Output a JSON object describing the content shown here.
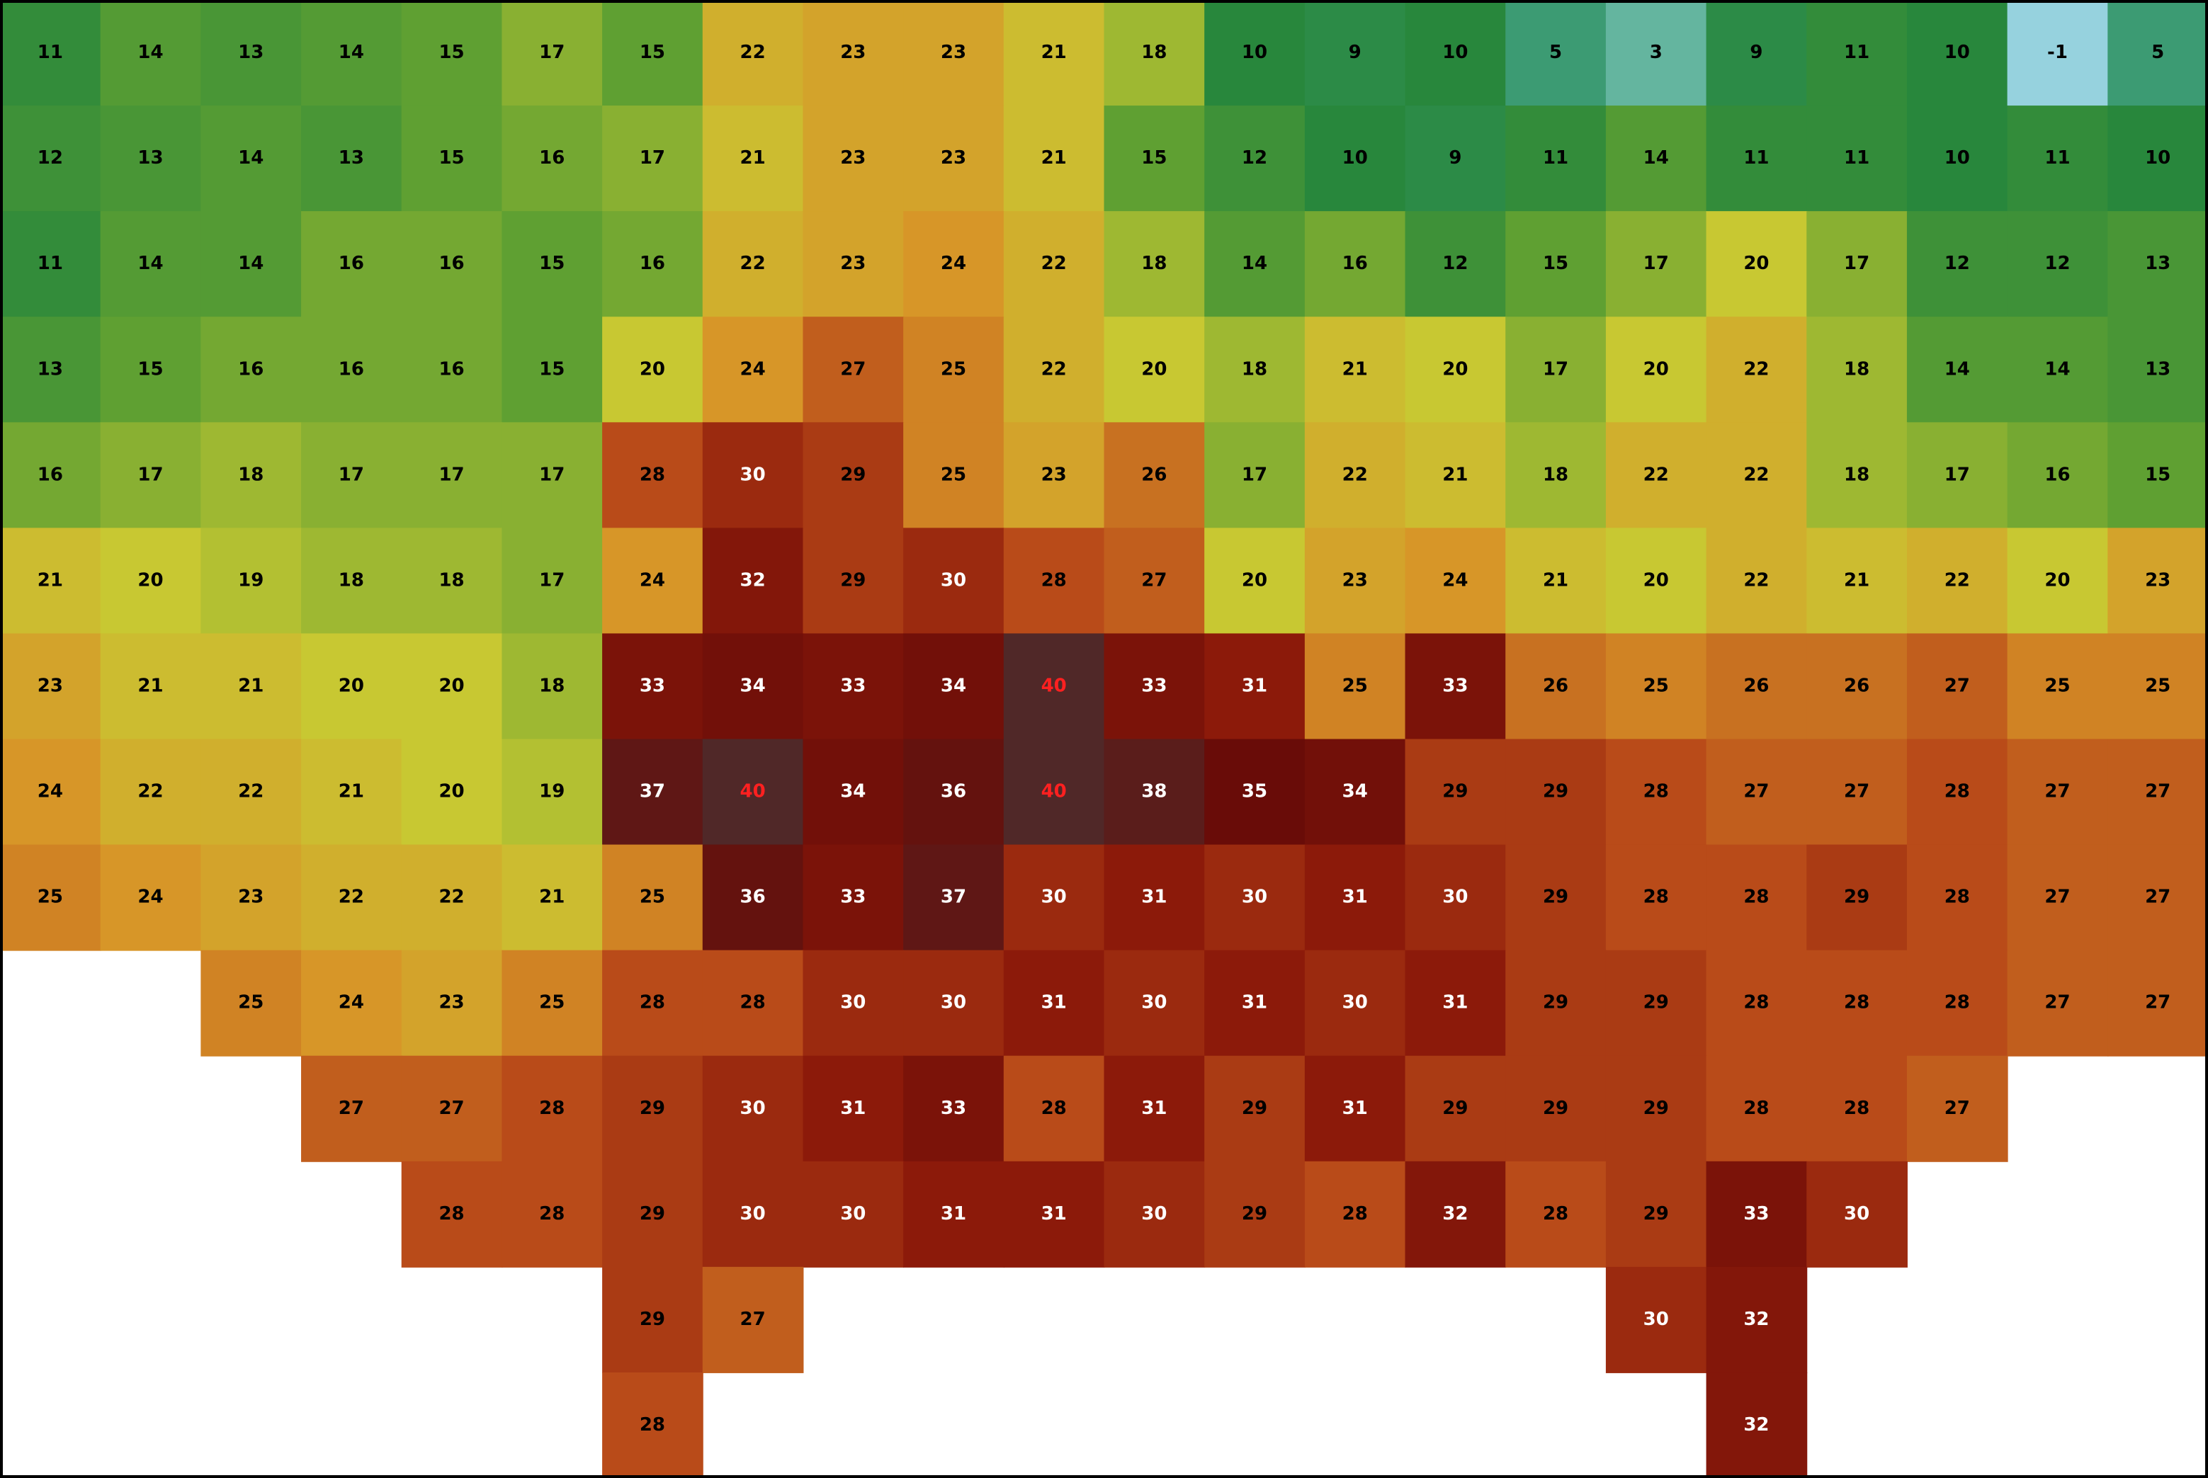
{
  "grid": {
    "rows": [
      [
        11,
        14,
        13,
        14,
        15,
        17,
        15,
        22,
        23,
        23,
        21,
        18,
        10,
        9,
        10,
        5,
        3,
        9,
        11,
        10,
        -1,
        5
      ],
      [
        12,
        13,
        14,
        13,
        15,
        16,
        17,
        21,
        23,
        23,
        21,
        15,
        12,
        10,
        9,
        11,
        14,
        11,
        11,
        10,
        11,
        10
      ],
      [
        11,
        14,
        14,
        16,
        16,
        15,
        16,
        22,
        23,
        24,
        22,
        18,
        14,
        16,
        12,
        15,
        17,
        20,
        17,
        12,
        12,
        13
      ],
      [
        13,
        15,
        16,
        16,
        16,
        15,
        20,
        24,
        27,
        25,
        22,
        20,
        18,
        21,
        20,
        17,
        20,
        22,
        18,
        14,
        14,
        13
      ],
      [
        16,
        17,
        18,
        17,
        17,
        17,
        28,
        30,
        29,
        25,
        23,
        26,
        17,
        22,
        21,
        18,
        22,
        22,
        18,
        17,
        16,
        15
      ],
      [
        21,
        20,
        19,
        18,
        18,
        17,
        24,
        32,
        29,
        30,
        28,
        27,
        20,
        23,
        24,
        21,
        20,
        22,
        21,
        22,
        20,
        23
      ],
      [
        23,
        21,
        21,
        20,
        20,
        18,
        33,
        34,
        33,
        34,
        40,
        33,
        31,
        25,
        33,
        26,
        25,
        26,
        26,
        27,
        25,
        25
      ],
      [
        24,
        22,
        22,
        21,
        20,
        19,
        37,
        40,
        34,
        36,
        40,
        38,
        35,
        34,
        29,
        29,
        28,
        27,
        27,
        28,
        27,
        27
      ],
      [
        25,
        24,
        23,
        22,
        22,
        21,
        25,
        36,
        33,
        37,
        30,
        31,
        30,
        31,
        30,
        29,
        28,
        28,
        29,
        28,
        27,
        27
      ],
      [
        null,
        null,
        25,
        24,
        23,
        25,
        28,
        28,
        30,
        30,
        31,
        30,
        31,
        30,
        31,
        29,
        29,
        28,
        28,
        28,
        27,
        27
      ],
      [
        null,
        null,
        null,
        27,
        27,
        28,
        29,
        30,
        31,
        33,
        28,
        31,
        29,
        31,
        29,
        29,
        29,
        28,
        28,
        27,
        null,
        null
      ],
      [
        null,
        null,
        null,
        null,
        28,
        28,
        29,
        30,
        30,
        31,
        31,
        30,
        29,
        28,
        32,
        28,
        29,
        33,
        30,
        null,
        null,
        null
      ],
      [
        null,
        null,
        null,
        null,
        null,
        null,
        29,
        27,
        null,
        null,
        null,
        null,
        null,
        null,
        null,
        null,
        30,
        32,
        null,
        null,
        null,
        null
      ],
      [
        null,
        null,
        null,
        null,
        null,
        null,
        28,
        null,
        null,
        null,
        null,
        null,
        null,
        null,
        null,
        null,
        null,
        32,
        null,
        null,
        null,
        null
      ]
    ]
  }
}
